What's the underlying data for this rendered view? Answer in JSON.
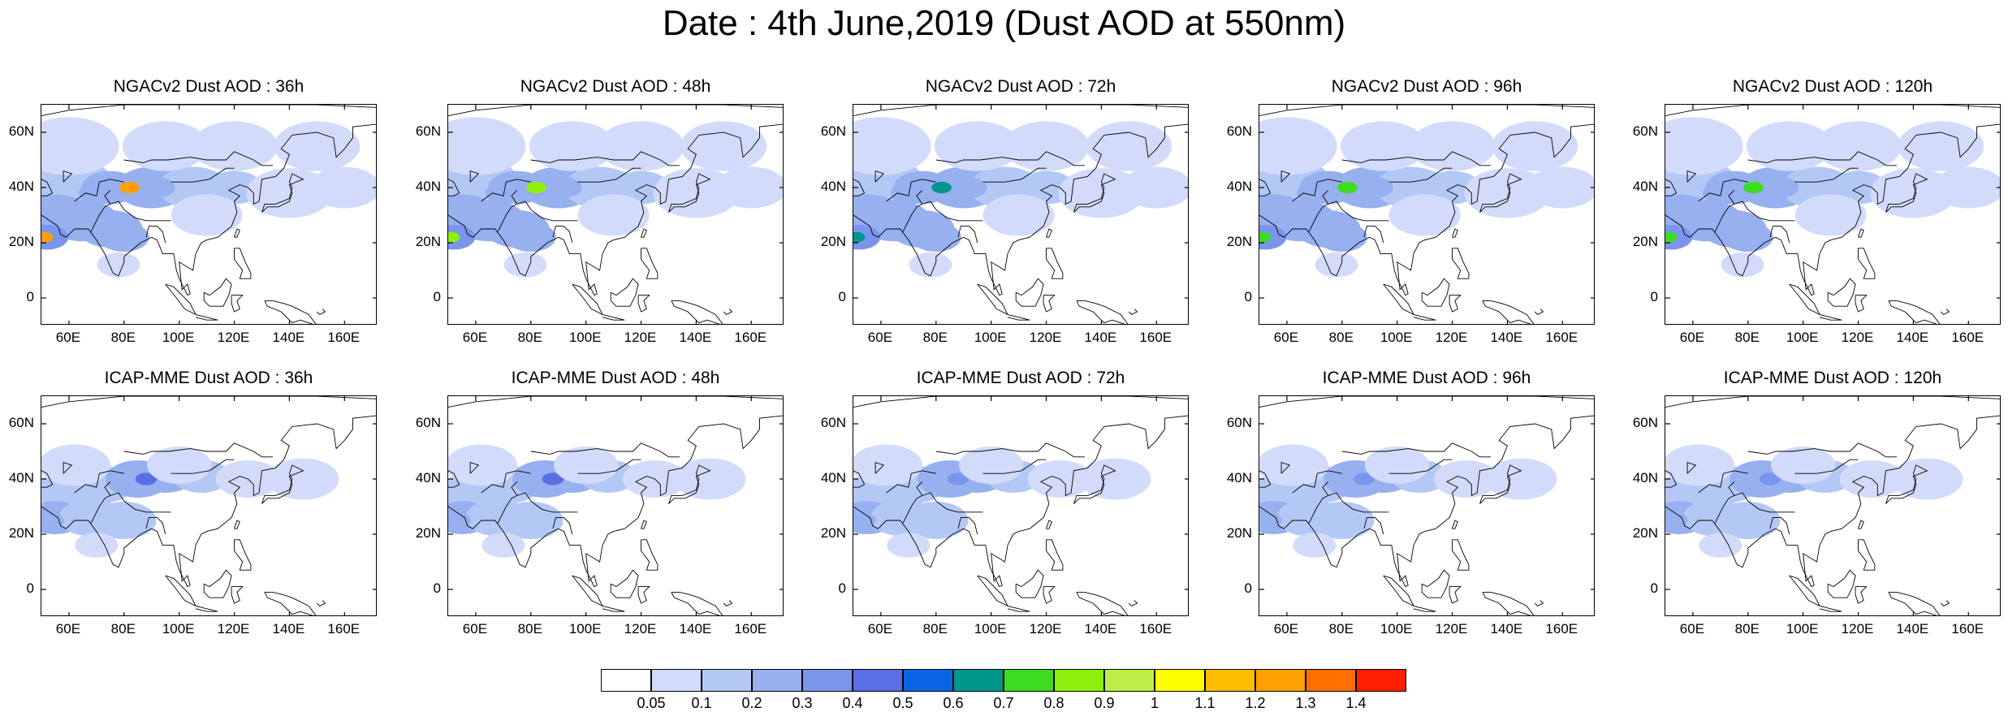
{
  "title": "Date : 4th June,2019 (Dust AOD at 550nm)",
  "lat_ticks": [
    "60N",
    "40N",
    "20N",
    "0"
  ],
  "lon_ticks": [
    "60E",
    "80E",
    "100E",
    "120E",
    "140E",
    "160E"
  ],
  "rows": [
    {
      "model": "NGACv2",
      "panels": [
        {
          "title": "NGACv2 Dust AOD : 36h",
          "hotspot_level": 13,
          "plume_level": 3
        },
        {
          "title": "NGACv2 Dust AOD : 48h",
          "hotspot_level": 9,
          "plume_level": 3
        },
        {
          "title": "NGACv2 Dust AOD : 72h",
          "hotspot_level": 7,
          "plume_level": 3
        },
        {
          "title": "NGACv2 Dust AOD : 96h",
          "hotspot_level": 8,
          "plume_level": 3
        },
        {
          "title": "NGACv2 Dust AOD : 120h",
          "hotspot_level": 8,
          "plume_level": 3
        }
      ]
    },
    {
      "model": "ICAP-MME",
      "panels": [
        {
          "title": "ICAP-MME Dust AOD : 36h",
          "hotspot_level": 5,
          "plume_level": 3
        },
        {
          "title": "ICAP-MME Dust AOD : 48h",
          "hotspot_level": 5,
          "plume_level": 3
        },
        {
          "title": "ICAP-MME Dust AOD : 72h",
          "hotspot_level": 4,
          "plume_level": 3
        },
        {
          "title": "ICAP-MME Dust AOD : 96h",
          "hotspot_level": 4,
          "plume_level": 3
        },
        {
          "title": "ICAP-MME Dust AOD : 120h",
          "hotspot_level": 4,
          "plume_level": 3
        }
      ]
    }
  ],
  "colorbar": {
    "labels": [
      "0.05",
      "0.1",
      "0.2",
      "0.3",
      "0.4",
      "0.5",
      "0.6",
      "0.7",
      "0.8",
      "0.9",
      "1",
      "1.1",
      "1.2",
      "1.3",
      "1.4"
    ],
    "colors": [
      "#ffffff",
      "#d2dcfa",
      "#b4c8f5",
      "#96b0f0",
      "#7a96ec",
      "#5a6ee6",
      "#0a64e6",
      "#00968c",
      "#3cdc1e",
      "#8cf00a",
      "#beee46",
      "#ffff00",
      "#ffbe00",
      "#ffa000",
      "#ff6e00",
      "#ff1e00"
    ]
  }
}
